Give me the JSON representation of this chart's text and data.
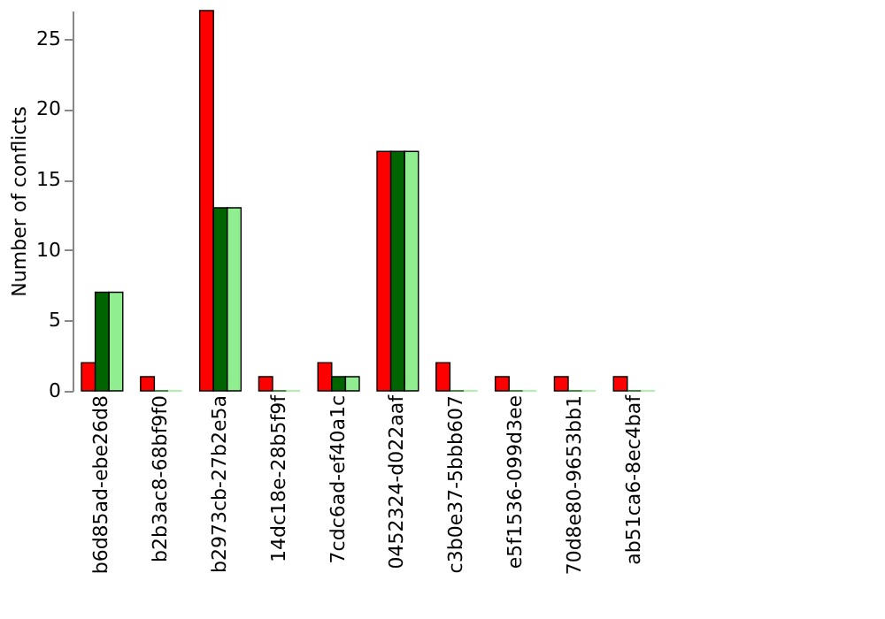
{
  "chart_data": {
    "type": "bar",
    "ylabel": "Number of conflicts",
    "categories": [
      "b6d85ad-ebe26d8",
      "b2b3ac8-68bf9f0",
      "b2973cb-27b2e5a",
      "14dc18e-28b5f9f",
      "7cdc6ad-ef40a1c",
      "0452324-d022aaf",
      "c3b0e37-5bbb607",
      "e5f1536-099d3ee",
      "70d8e80-9653bb1",
      "ab51ca6-8ec4baf"
    ],
    "series": [
      {
        "color": "#ff0000",
        "values": [
          2,
          1,
          27,
          1,
          2,
          17,
          2,
          1,
          1,
          1
        ]
      },
      {
        "color": "#006400",
        "values": [
          7,
          0,
          13,
          0,
          1,
          17,
          0,
          0,
          0,
          0
        ]
      },
      {
        "color": "#90ee90",
        "values": [
          7,
          0,
          13,
          0,
          1,
          17,
          0,
          0,
          0,
          0
        ]
      }
    ],
    "ylim": [
      0,
      27
    ],
    "yticks": [
      0,
      5,
      10,
      15,
      20,
      25
    ],
    "grid": false
  }
}
